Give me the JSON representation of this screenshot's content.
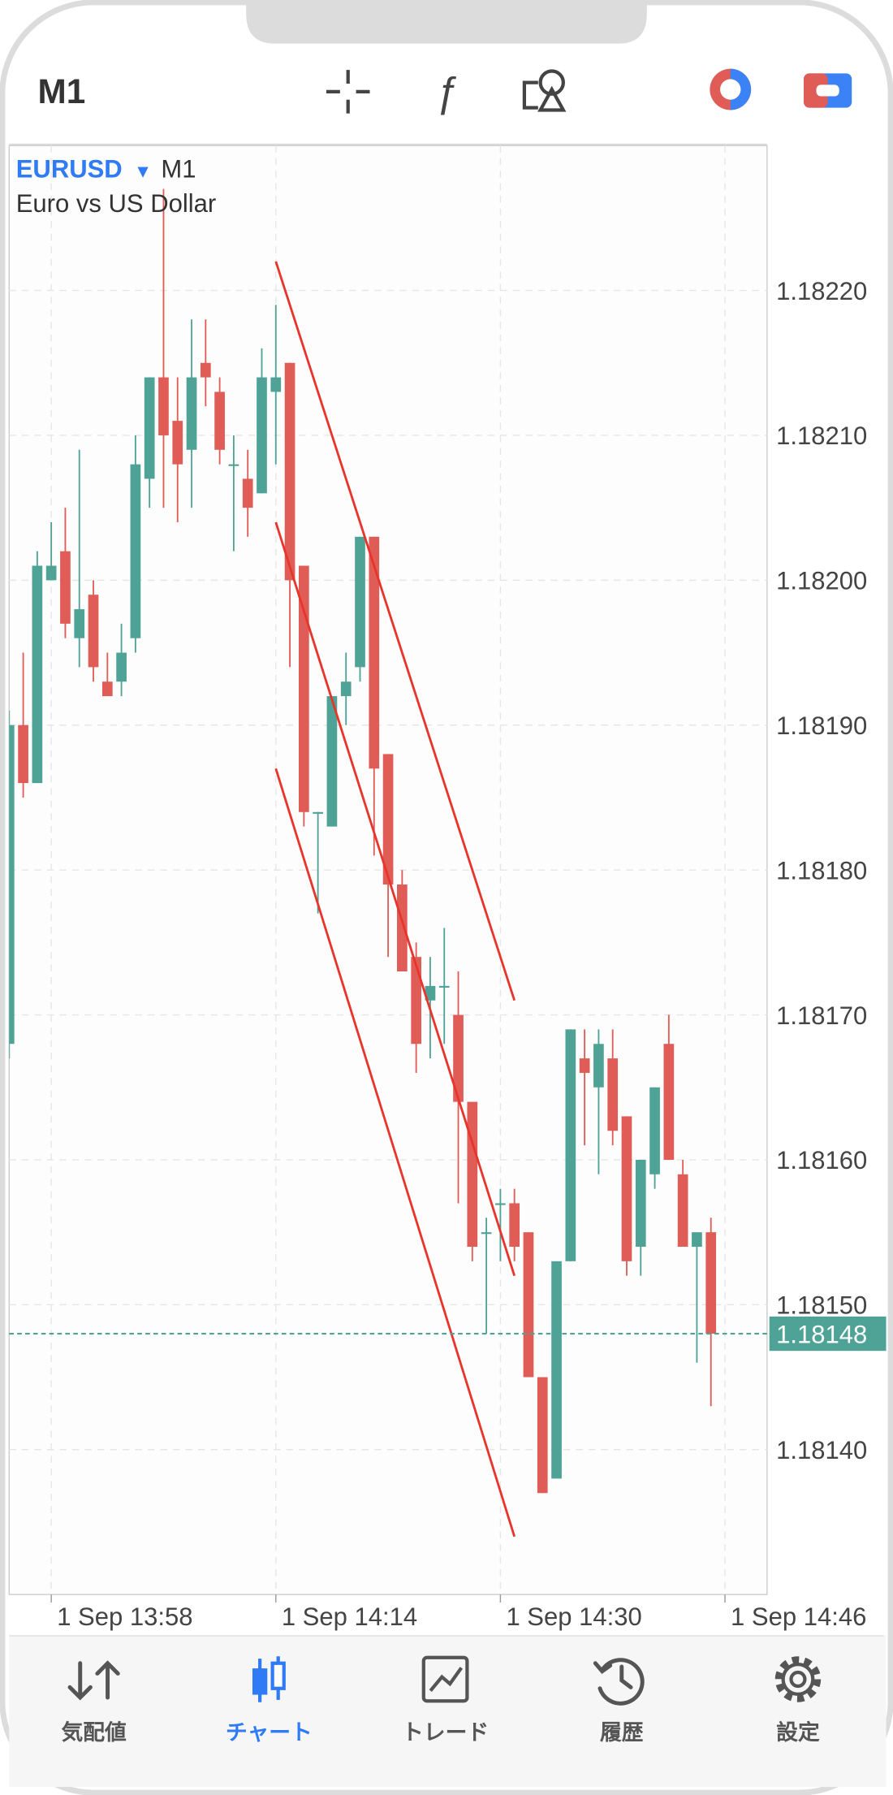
{
  "header": {
    "timeframe": "M1"
  },
  "chart_data": {
    "type": "candlestick",
    "symbol": "EURUSD",
    "timeframe": "M1",
    "description": "Euro vs US Dollar",
    "up_color": "#4fa396",
    "down_color": "#e05c57",
    "x": [
      "1 Sep 13:55",
      "1 Sep 13:56",
      "1 Sep 13:57",
      "1 Sep 13:58",
      "1 Sep 13:59",
      "1 Sep 14:00",
      "1 Sep 14:01",
      "1 Sep 14:02",
      "1 Sep 14:03",
      "1 Sep 14:04",
      "1 Sep 14:05",
      "1 Sep 14:06",
      "1 Sep 14:07",
      "1 Sep 14:08",
      "1 Sep 14:09",
      "1 Sep 14:10",
      "1 Sep 14:11",
      "1 Sep 14:12",
      "1 Sep 14:13",
      "1 Sep 14:14",
      "1 Sep 14:15",
      "1 Sep 14:16",
      "1 Sep 14:17",
      "1 Sep 14:18",
      "1 Sep 14:19",
      "1 Sep 14:20",
      "1 Sep 14:21",
      "1 Sep 14:22",
      "1 Sep 14:23",
      "1 Sep 14:24",
      "1 Sep 14:25",
      "1 Sep 14:26",
      "1 Sep 14:27",
      "1 Sep 14:28",
      "1 Sep 14:29",
      "1 Sep 14:30",
      "1 Sep 14:31",
      "1 Sep 14:32",
      "1 Sep 14:33",
      "1 Sep 14:34",
      "1 Sep 14:35",
      "1 Sep 14:36",
      "1 Sep 14:37",
      "1 Sep 14:38",
      "1 Sep 14:39",
      "1 Sep 14:40",
      "1 Sep 14:41",
      "1 Sep 14:42",
      "1 Sep 14:43",
      "1 Sep 14:44",
      "1 Sep 14:45"
    ],
    "open": [
      1.18168,
      1.1819,
      1.18186,
      1.182,
      1.18202,
      1.18196,
      1.18199,
      1.18193,
      1.18193,
      1.18196,
      1.18207,
      1.18214,
      1.18211,
      1.18209,
      1.18215,
      1.18213,
      1.18208,
      1.18207,
      1.18206,
      1.18213,
      1.18215,
      1.18201,
      1.18184,
      1.18183,
      1.18192,
      1.18194,
      1.18203,
      1.18188,
      1.18179,
      1.18174,
      1.18171,
      1.18172,
      1.1817,
      1.18164,
      1.18155,
      1.18157,
      1.18157,
      1.18155,
      1.18145,
      1.18138,
      1.18153,
      1.18167,
      1.18165,
      1.18167,
      1.18163,
      1.18154,
      1.18159,
      1.18168,
      1.18159,
      1.18154,
      1.18155
    ],
    "high": [
      1.18191,
      1.18195,
      1.18202,
      1.18204,
      1.18205,
      1.18209,
      1.182,
      1.18195,
      1.18197,
      1.1821,
      1.18214,
      1.18227,
      1.18214,
      1.18218,
      1.18218,
      1.18214,
      1.1821,
      1.18209,
      1.18216,
      1.18219,
      1.18215,
      1.18201,
      1.18184,
      1.18192,
      1.18195,
      1.18203,
      1.18203,
      1.18188,
      1.1818,
      1.18175,
      1.18174,
      1.18176,
      1.18173,
      1.18164,
      1.18156,
      1.18158,
      1.18158,
      1.18155,
      1.18145,
      1.18153,
      1.18169,
      1.18169,
      1.18169,
      1.18169,
      1.18163,
      1.1816,
      1.18165,
      1.1817,
      1.1816,
      1.18155,
      1.18156
    ],
    "low": [
      1.18167,
      1.18185,
      1.18186,
      1.182,
      1.18196,
      1.18194,
      1.18193,
      1.18192,
      1.18192,
      1.18195,
      1.18205,
      1.18205,
      1.18204,
      1.18205,
      1.18212,
      1.18208,
      1.18202,
      1.18203,
      1.18206,
      1.18208,
      1.18194,
      1.18183,
      1.18177,
      1.18183,
      1.1819,
      1.18193,
      1.18181,
      1.18174,
      1.18173,
      1.18166,
      1.18167,
      1.18168,
      1.18157,
      1.18153,
      1.18148,
      1.18153,
      1.18153,
      1.18145,
      1.18137,
      1.18138,
      1.18153,
      1.18161,
      1.18159,
      1.18161,
      1.18152,
      1.18152,
      1.18158,
      1.1816,
      1.18154,
      1.18146,
      1.18143
    ],
    "close": [
      1.1819,
      1.18186,
      1.18201,
      1.18201,
      1.18197,
      1.18198,
      1.18194,
      1.18192,
      1.18195,
      1.18208,
      1.18214,
      1.1821,
      1.18208,
      1.18214,
      1.18214,
      1.18209,
      1.18208,
      1.18205,
      1.18214,
      1.18214,
      1.182,
      1.18184,
      1.18184,
      1.18192,
      1.18193,
      1.18203,
      1.18187,
      1.18179,
      1.18173,
      1.18168,
      1.18172,
      1.18172,
      1.18164,
      1.18154,
      1.18155,
      1.18157,
      1.18154,
      1.18145,
      1.18137,
      1.18153,
      1.18169,
      1.18166,
      1.18168,
      1.18162,
      1.18153,
      1.1816,
      1.18165,
      1.1816,
      1.18154,
      1.18155,
      1.18148
    ],
    "xlim": [
      "1 Sep 13:55",
      "1 Sep 14:49"
    ],
    "xticks": [
      "1 Sep 13:58",
      "1 Sep 14:14",
      "1 Sep 14:30",
      "1 Sep 14:46"
    ],
    "ylim": [
      1.1813,
      1.1823
    ],
    "yticks": [
      {
        "value": 1.1814,
        "label": "1.18140"
      },
      {
        "value": 1.1815,
        "label": "1.18150"
      },
      {
        "value": 1.1816,
        "label": "1.18160"
      },
      {
        "value": 1.1817,
        "label": "1.18170"
      },
      {
        "value": 1.1818,
        "label": "1.18180"
      },
      {
        "value": 1.1819,
        "label": "1.18190"
      },
      {
        "value": 1.182,
        "label": "1.18200"
      },
      {
        "value": 1.1821,
        "label": "1.18210"
      },
      {
        "value": 1.1822,
        "label": "1.18220"
      }
    ],
    "grid": true,
    "last_price": 1.18148,
    "last_price_color": "#4fa396",
    "channel_color": "#e8352c",
    "channel_lines": [
      {
        "x": [
          "1 Sep 14:14",
          "1 Sep 14:31"
        ],
        "y": [
          1.18222,
          1.18171
        ]
      },
      {
        "x": [
          "1 Sep 14:14",
          "1 Sep 14:31"
        ],
        "y": [
          1.18204,
          1.18152
        ]
      },
      {
        "x": [
          "1 Sep 14:14",
          "1 Sep 14:31"
        ],
        "y": [
          1.18187,
          1.18134
        ]
      }
    ]
  },
  "tabs": [
    "気配値",
    "チャート",
    "トレード",
    "履歴",
    "設定"
  ],
  "active_tab": 1
}
